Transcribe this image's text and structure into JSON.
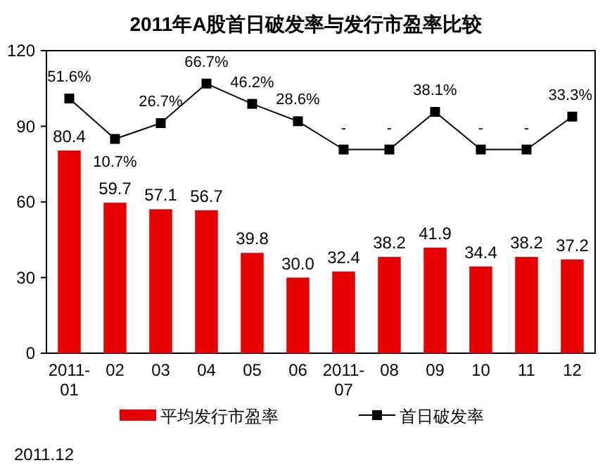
{
  "chart_data": {
    "type": "bar",
    "title": "2011年A股首日破发率与发行市盈率比较",
    "categories": [
      "2011-01",
      "02",
      "03",
      "04",
      "05",
      "06",
      "2011-07",
      "08",
      "09",
      "10",
      "11",
      "12"
    ],
    "ylim": [
      0,
      120
    ],
    "yticks": [
      0,
      30,
      60,
      90,
      120
    ],
    "y2lim": [
      -206,
      100
    ],
    "legend": "bottom",
    "tick_labels": "y",
    "series": [
      {
        "name": "平均发行市盈率",
        "color": "#e60000",
        "values": [
          80.4,
          59.7,
          57.1,
          56.7,
          39.8,
          30.0,
          32.4,
          38.2,
          41.9,
          34.4,
          38.2,
          37.2
        ],
        "value_labels": [
          "80.4",
          "59.7",
          "57.1",
          "56.7",
          "39.8",
          "30.0",
          "32.4",
          "38.2",
          "41.9",
          "34.4",
          "38.2",
          "37.2"
        ]
      },
      {
        "name": "首日破发率",
        "type": "line",
        "axis": "y2",
        "color": "#000000",
        "marker": "square",
        "line_style": "solid",
        "values": [
          51.6,
          10.7,
          26.7,
          66.7,
          46.2,
          28.6,
          0,
          0,
          38.1,
          0,
          0,
          33.3
        ],
        "value_labels": [
          "51.6%",
          "10.7%",
          "26.7%",
          "66.7%",
          "46.2%",
          "28.6%",
          "-",
          "-",
          "38.1%",
          "-",
          "-",
          "33.3%"
        ]
      }
    ],
    "annotations": [
      "2011.12"
    ]
  }
}
